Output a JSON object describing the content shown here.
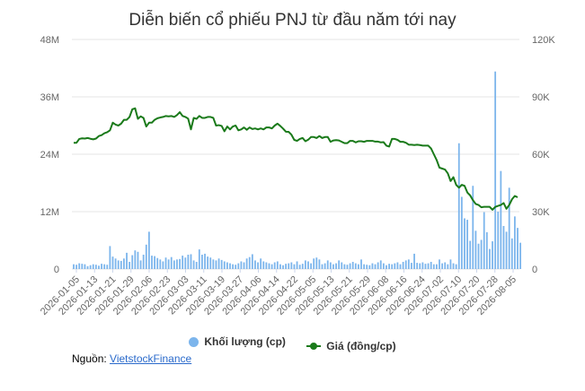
{
  "colors": {
    "bars": "#7cb5ec",
    "line": "#1a7a1a",
    "grid": "#e6e6e6"
  },
  "chart_data": {
    "type": "bar+line",
    "title": "Diễn biến cổ phiếu PNJ từ đầu năm tới nay",
    "y_left": {
      "ticks": [
        "0",
        "12M",
        "24M",
        "36M",
        "48M"
      ],
      "range": [
        0,
        48000000
      ]
    },
    "y_right": {
      "ticks": [
        "0",
        "30K",
        "60K",
        "90K",
        "120K"
      ],
      "range": [
        0,
        120000
      ]
    },
    "x_tick_labels": [
      "2026-01-05",
      "2026-01-13",
      "2026-01-21",
      "2026-01-29",
      "2026-02-06",
      "2026-02-23",
      "2026-03-03",
      "2026-03-11",
      "2026-03-19",
      "2026-03-27",
      "2026-04-06",
      "2026-04-14",
      "2026-04-22",
      "2026-05-05",
      "2026-05-13",
      "2026-05-21",
      "2026-05-29",
      "2026-06-08",
      "2026-06-16",
      "2026-06-24",
      "2026-07-02",
      "2026-07-10",
      "2026-07-20",
      "2026-07-28",
      "2026-08-05"
    ],
    "grid": true,
    "legend_position": "bottom",
    "series": [
      {
        "name": "Khối lượng (cp)",
        "type": "bar",
        "axis": "left",
        "values": [
          1.0,
          0.9,
          1.2,
          1.1,
          1.0,
          0.6,
          0.8,
          1.0,
          0.9,
          0.7,
          1.1,
          1.0,
          0.9,
          4.8,
          2.6,
          2.2,
          1.8,
          1.7,
          2.2,
          3.4,
          1.5,
          2.9,
          3.9,
          3.6,
          1.8,
          3.0,
          5.1,
          7.8,
          2.8,
          2.7,
          2.3,
          2.0,
          1.6,
          2.4,
          2.0,
          2.5,
          1.8,
          2.0,
          2.1,
          2.8,
          2.4,
          3.0,
          3.1,
          1.8,
          1.5,
          4.1,
          3.0,
          3.2,
          2.6,
          2.4,
          2.0,
          1.8,
          2.2,
          1.9,
          1.6,
          1.4,
          1.2,
          1.0,
          0.9,
          1.2,
          1.6,
          1.4,
          2.2,
          2.5,
          3.1,
          1.8,
          1.4,
          2.2,
          1.6,
          1.4,
          1.2,
          1.0,
          1.4,
          1.6,
          1.0,
          0.8,
          1.1,
          1.2,
          1.4,
          1.0,
          1.6,
          0.9,
          1.1,
          1.8,
          1.6,
          1.2,
          2.2,
          2.4,
          2.0,
          1.0,
          1.2,
          1.8,
          1.4,
          1.0,
          1.2,
          1.8,
          1.4,
          1.0,
          0.9,
          1.2,
          1.5,
          1.2,
          1.0,
          2.0,
          1.0,
          0.9,
          0.8,
          1.2,
          1.0,
          1.4,
          1.8,
          1.2,
          0.8,
          1.1,
          1.0,
          1.2,
          1.4,
          1.0,
          1.5,
          1.8,
          2.0,
          1.3,
          3.2,
          1.3,
          1.2,
          1.4,
          1.1,
          1.2,
          1.5,
          1.0,
          1.0,
          2.0,
          1.2,
          1.4,
          1.0,
          2.0,
          1.2,
          1.0,
          26.3,
          15.1,
          10.6,
          10.3,
          5.9,
          17.4,
          8.0,
          5.3,
          6.1,
          11.9,
          7.7,
          4.2,
          5.8,
          41.3,
          12.0,
          20.5,
          9.0,
          7.8,
          17.0,
          6.4,
          11.0,
          8.6,
          5.5
        ],
        "unit": "M cp"
      },
      {
        "name": "Giá (đồng/cp)",
        "type": "line",
        "axis": "right",
        "values": [
          66000,
          66000,
          68000,
          68300,
          68200,
          68500,
          68100,
          67800,
          68200,
          69500,
          70000,
          71000,
          71500,
          72500,
          76500,
          75500,
          75000,
          76000,
          78000,
          78000,
          79500,
          83500,
          84000,
          78500,
          79800,
          79000,
          74500,
          76500,
          76500,
          78000,
          78800,
          79200,
          79500,
          80000,
          79800,
          80000,
          79500,
          80500,
          82000,
          80000,
          79500,
          78600,
          73000,
          79000,
          78500,
          80000,
          79000,
          79000,
          79500,
          79500,
          79000,
          75000,
          75200,
          74800,
          72000,
          74500,
          73000,
          74500,
          75000,
          72500,
          73000,
          74000,
          72800,
          74000,
          73200,
          73500,
          73000,
          73500,
          73000,
          74000,
          74000,
          73500,
          75000,
          76000,
          74800,
          73400,
          71800,
          71700,
          70200,
          67500,
          67000,
          68000,
          68500,
          66800,
          67600,
          69000,
          69000,
          68500,
          69500,
          68500,
          69000,
          69000,
          66500,
          67200,
          67400,
          67200,
          66500,
          65800,
          65800,
          67000,
          67000,
          66200,
          66800,
          66800,
          66500,
          67000,
          67000,
          67000,
          66600,
          66600,
          66200,
          66300,
          64500,
          64000,
          68000,
          68000,
          67500,
          66500,
          66500,
          66000,
          65000,
          65000,
          64800,
          65000,
          64800,
          64500,
          64500,
          64500,
          63000,
          60000,
          57000,
          53000,
          52500,
          52000,
          50000,
          46000,
          48000,
          44000,
          42500,
          44000,
          43500,
          40000,
          38500,
          36000,
          34000,
          33500,
          32300,
          32500,
          32500,
          32500,
          31000,
          32500,
          33000,
          33500,
          34500,
          31500,
          33500,
          36500,
          38200,
          37500
        ]
      }
    ]
  },
  "legend": {
    "volume_label": "Khối lượng (cp)",
    "price_label": "Giá (đồng/cp)"
  },
  "source": {
    "prefix": "Nguồn: ",
    "link_text": "VietstockFinance"
  }
}
